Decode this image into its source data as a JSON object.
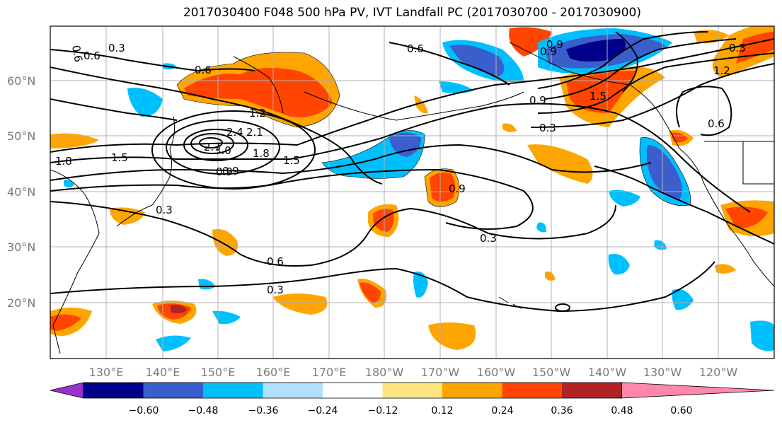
{
  "title": "2017030400 F048 500 hPa PV, IVT Landfall PC (2017030700 - 2017030900)",
  "lat_labels": [
    "60°N",
    "50°N",
    "40°N",
    "30°N",
    "20°N"
  ],
  "lon_labels": [
    "130°E",
    "140°E",
    "150°E",
    "160°E",
    "170°E",
    "180°W",
    "170°W",
    "160°W",
    "150°W",
    "140°W",
    "130°W",
    "120°W"
  ],
  "contour_labels": [
    "0.6",
    "0.3",
    "0.6",
    "1.2",
    "2.4",
    "2.1",
    "1.8",
    "1.5",
    "0.9",
    "2.7",
    "3.0",
    "1.8",
    "1.5",
    "0.9",
    "0.3",
    "0.6",
    "0.3",
    "0.6",
    "0.9",
    "0.3",
    "0.6",
    "0.9",
    "1.5",
    "0.3",
    "0.9",
    "1.2",
    "0.6",
    "0.9",
    "0.3"
  ],
  "colorbar": {
    "ticks": [
      "−0.60",
      "−0.48",
      "−0.36",
      "−0.24",
      "−0.12",
      "0.12",
      "0.24",
      "0.36",
      "0.48",
      "0.60"
    ],
    "colors": [
      "#9932cc",
      "#00008b",
      "#3a5fcd",
      "#00bfff",
      "#b0e0ff",
      "#ffffff",
      "#ffe680",
      "#ffa500",
      "#ff4500",
      "#b22222",
      "#ff88aa"
    ]
  }
}
